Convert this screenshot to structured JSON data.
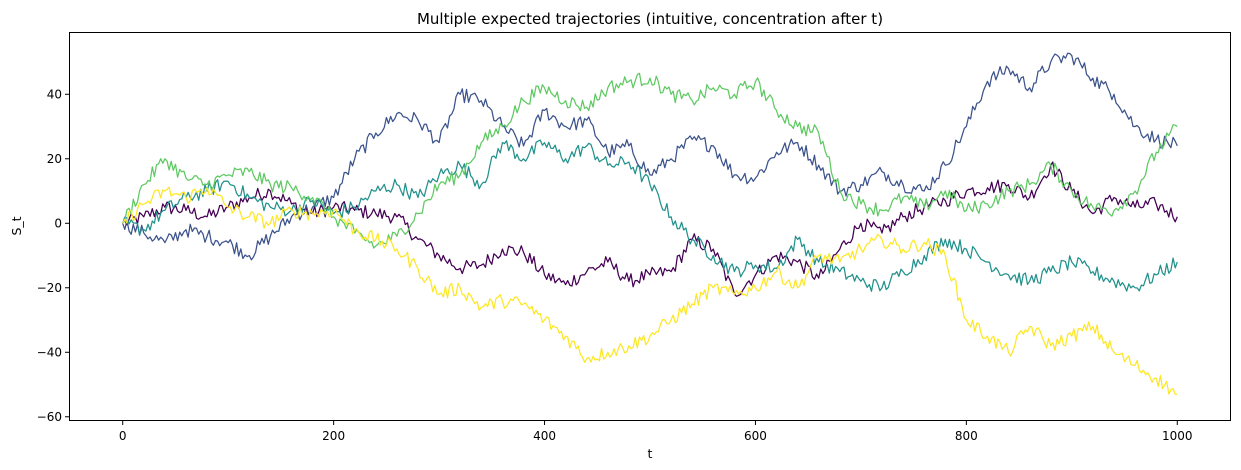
{
  "chart_data": {
    "type": "line",
    "title": "Multiple expected trajectories (intuitive, concentration after t)",
    "xlabel": "t",
    "ylabel": "S_t",
    "xlim": [
      -50,
      1050
    ],
    "ylim": [
      -61,
      59
    ],
    "x_ticks": [
      0,
      200,
      400,
      600,
      800,
      1000
    ],
    "y_ticks": [
      -60,
      -40,
      -20,
      0,
      20,
      40
    ],
    "grid": false,
    "legend": "none",
    "series": [
      {
        "color": "#440154",
        "x": [
          0,
          20,
          40,
          60,
          80,
          100,
          120,
          140,
          160,
          180,
          200,
          220,
          240,
          260,
          280,
          300,
          320,
          340,
          360,
          380,
          400,
          420,
          440,
          460,
          480,
          500,
          520,
          540,
          560,
          580,
          600,
          620,
          640,
          660,
          680,
          700,
          720,
          740,
          760,
          780,
          800,
          820,
          840,
          860,
          880,
          900,
          920,
          940,
          960,
          980,
          1000
        ],
        "values": [
          0,
          2,
          5,
          4,
          2,
          5,
          8,
          10,
          6,
          3,
          5,
          4,
          3,
          2,
          -5,
          -10,
          -14,
          -13,
          -8,
          -9,
          -16,
          -19,
          -15,
          -12,
          -18,
          -16,
          -15,
          -5,
          -8,
          -22,
          -16,
          -10,
          -12,
          -17,
          -8,
          0,
          -3,
          2,
          5,
          7,
          10,
          11,
          12,
          8,
          18,
          10,
          3,
          8,
          5,
          6,
          2
        ]
      },
      {
        "color": "#3b528b",
        "x": [
          0,
          20,
          40,
          60,
          80,
          100,
          120,
          140,
          160,
          180,
          200,
          220,
          240,
          260,
          280,
          300,
          320,
          340,
          360,
          380,
          400,
          420,
          440,
          460,
          480,
          500,
          520,
          540,
          560,
          580,
          600,
          620,
          640,
          660,
          680,
          700,
          720,
          740,
          760,
          780,
          800,
          820,
          840,
          860,
          880,
          900,
          920,
          940,
          960,
          980,
          1000
        ],
        "values": [
          0,
          -3,
          -6,
          -2,
          -4,
          -6,
          -10,
          -4,
          2,
          5,
          8,
          20,
          28,
          34,
          32,
          25,
          40,
          38,
          30,
          24,
          35,
          30,
          32,
          22,
          24,
          15,
          20,
          26,
          24,
          15,
          14,
          22,
          25,
          18,
          10,
          12,
          16,
          12,
          10,
          18,
          30,
          44,
          48,
          42,
          50,
          52,
          45,
          40,
          30,
          26,
          24
        ]
      },
      {
        "color": "#21918c",
        "x": [
          0,
          20,
          40,
          60,
          80,
          100,
          120,
          140,
          160,
          180,
          200,
          220,
          240,
          260,
          280,
          300,
          320,
          340,
          360,
          380,
          400,
          420,
          440,
          460,
          480,
          500,
          520,
          540,
          560,
          580,
          600,
          620,
          640,
          660,
          680,
          700,
          720,
          740,
          760,
          780,
          800,
          820,
          840,
          860,
          880,
          900,
          920,
          940,
          960,
          980,
          1000
        ],
        "values": [
          0,
          -2,
          4,
          8,
          10,
          13,
          8,
          5,
          4,
          7,
          3,
          5,
          10,
          12,
          8,
          15,
          18,
          12,
          25,
          20,
          25,
          20,
          24,
          18,
          19,
          12,
          2,
          -5,
          -10,
          -15,
          -13,
          -14,
          -5,
          -12,
          -15,
          -18,
          -20,
          -15,
          -10,
          -5,
          -8,
          -12,
          -16,
          -18,
          -15,
          -12,
          -15,
          -18,
          -20,
          -16,
          -12
        ]
      },
      {
        "color": "#5ec962",
        "x": [
          0,
          20,
          40,
          60,
          80,
          100,
          120,
          140,
          160,
          180,
          200,
          220,
          240,
          260,
          280,
          300,
          320,
          340,
          360,
          380,
          400,
          420,
          440,
          460,
          480,
          500,
          520,
          540,
          560,
          580,
          600,
          620,
          640,
          660,
          680,
          700,
          720,
          740,
          760,
          780,
          800,
          820,
          840,
          860,
          880,
          900,
          920,
          940,
          960,
          980,
          1000
        ],
        "values": [
          0,
          12,
          20,
          14,
          12,
          15,
          16,
          12,
          11,
          8,
          2,
          -3,
          -7,
          -4,
          3,
          12,
          15,
          25,
          30,
          38,
          42,
          38,
          36,
          42,
          44,
          45,
          40,
          38,
          42,
          40,
          44,
          35,
          30,
          28,
          10,
          6,
          4,
          8,
          5,
          10,
          4,
          6,
          10,
          12,
          18,
          10,
          5,
          4,
          10,
          22,
          30
        ]
      },
      {
        "color": "#fde725",
        "x": [
          0,
          20,
          40,
          60,
          80,
          100,
          120,
          140,
          160,
          180,
          200,
          220,
          240,
          260,
          280,
          300,
          320,
          340,
          360,
          380,
          400,
          420,
          440,
          460,
          480,
          500,
          520,
          540,
          560,
          580,
          600,
          620,
          640,
          660,
          680,
          700,
          720,
          740,
          760,
          780,
          800,
          820,
          840,
          860,
          880,
          900,
          920,
          940,
          960,
          980,
          1000
        ],
        "values": [
          0,
          6,
          10,
          8,
          11,
          5,
          2,
          0,
          4,
          3,
          4,
          -2,
          -5,
          -8,
          -14,
          -22,
          -20,
          -26,
          -24,
          -25,
          -30,
          -35,
          -42,
          -40,
          -38,
          -35,
          -30,
          -25,
          -20,
          -22,
          -20,
          -15,
          -20,
          -10,
          -12,
          -8,
          -5,
          -8,
          -6,
          -10,
          -30,
          -35,
          -40,
          -32,
          -38,
          -35,
          -32,
          -40,
          -44,
          -48,
          -53
        ]
      }
    ]
  }
}
